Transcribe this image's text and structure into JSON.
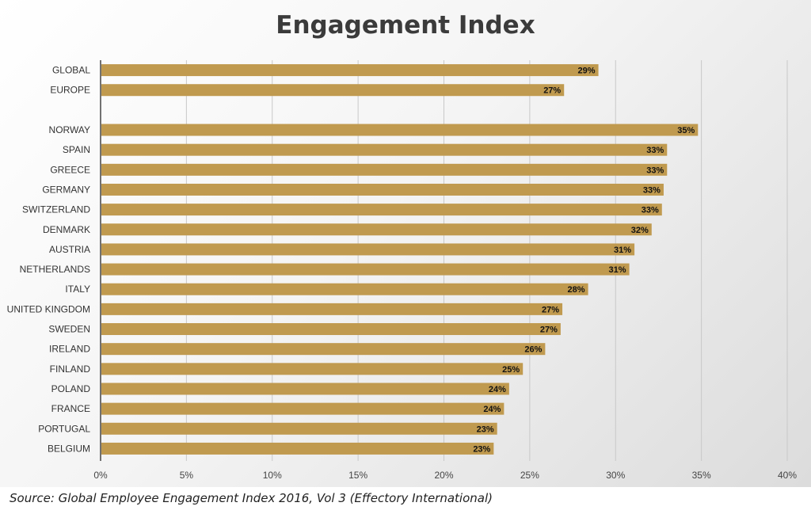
{
  "chart_data": {
    "type": "bar",
    "orientation": "horizontal",
    "title": "Engagement Index",
    "categories": [
      "GLOBAL",
      "EUROPE",
      "",
      "NORWAY",
      "SPAIN",
      "GREECE",
      "GERMANY",
      "SWITZERLAND",
      "DENMARK",
      "AUSTRIA",
      "NETHERLANDS",
      "ITALY",
      "UNITED KINGDOM",
      "SWEDEN",
      "IRELAND",
      "FINLAND",
      "POLAND",
      "FRANCE",
      "PORTUGAL",
      "BELGIUM"
    ],
    "values": [
      29,
      27,
      null,
      34.8,
      33,
      33,
      32.8,
      32.7,
      32.1,
      31.1,
      30.8,
      28.4,
      26.9,
      26.8,
      25.9,
      24.6,
      23.8,
      23.5,
      23.1,
      22.9
    ],
    "data_labels": [
      "29%",
      "27%",
      "",
      "35%",
      "33%",
      "33%",
      "33%",
      "33%",
      "32%",
      "31%",
      "31%",
      "28%",
      "27%",
      "27%",
      "26%",
      "25%",
      "24%",
      "24%",
      "23%",
      "23%"
    ],
    "xlim": [
      0,
      40
    ],
    "xticks": [
      "0%",
      "5%",
      "10%",
      "15%",
      "20%",
      "25%",
      "30%",
      "35%",
      "40%"
    ],
    "xlabel": "",
    "ylabel": "",
    "grid": "vertical",
    "legend": "none",
    "bar_color": "#c09a4f"
  },
  "source_note": "Source: Global Employee Engagement Index 2016, Vol 3 (Effectory International)"
}
